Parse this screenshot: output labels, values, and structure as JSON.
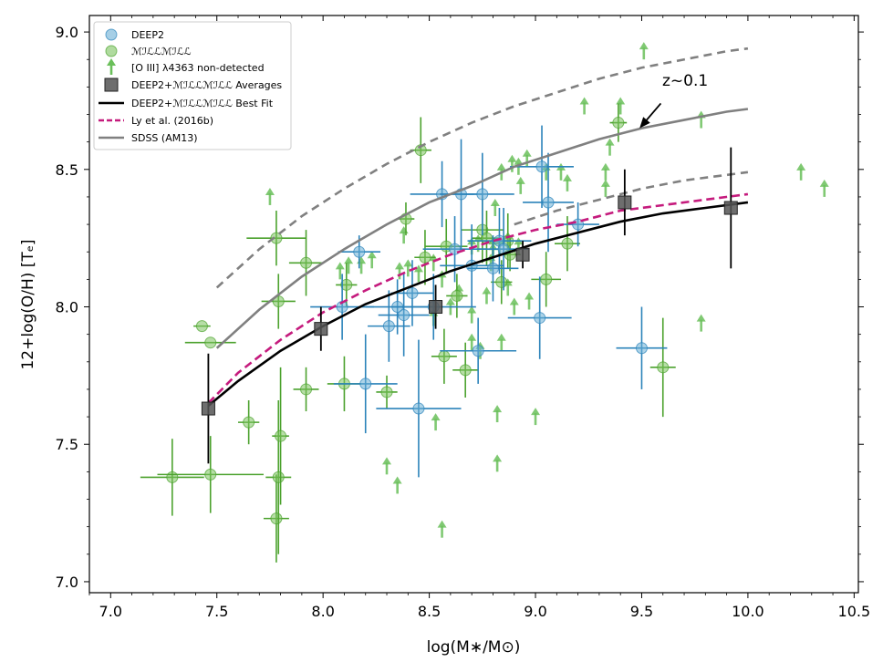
{
  "chart_data": {
    "type": "scatter",
    "title": "",
    "xlabel": "log(M∗/M⊙)",
    "ylabel": "12+log(O/H) [Tₑ]",
    "xlim": [
      6.9,
      10.52
    ],
    "ylim": [
      6.96,
      9.06
    ],
    "xticks": [
      7.0,
      7.5,
      8.0,
      8.5,
      9.0,
      9.5,
      10.0,
      10.5
    ],
    "xtick_labels": [
      "7.0",
      "7.5",
      "8.0",
      "8.5",
      "9.0",
      "9.5",
      "10.0",
      "10.5"
    ],
    "yticks": [
      7.0,
      7.5,
      8.0,
      8.5,
      9.0
    ],
    "ytick_labels": [
      "7.0",
      "7.5",
      "8.0",
      "8.5",
      "9.0"
    ],
    "grid": false,
    "legend_position": "top-left",
    "colors": {
      "deep2": "#2b83ba",
      "mact": "#4ca22e",
      "nondetect": "#6abf5a",
      "averages": "#555555",
      "bestfit": "#000000",
      "ly2016": "#c51b7d",
      "sdss": "#808080"
    },
    "legend": [
      "DEEP2",
      "ℳℐℒℒℳℐℒℒ",
      "[O III] λ4363 non-detected",
      "DEEP2+ℳℐℒℒℳℐℒℒ Averages",
      "DEEP2+ℳℐℒℒℳℐℒℒ Best Fit",
      "Ly et al. (2016b)",
      "SDSS (AM13)"
    ],
    "annotation": "z~0.1",
    "deep2": [
      [
        8.17,
        8.2,
        0.1,
        0.06
      ],
      [
        8.09,
        8.0,
        0.15,
        0.12
      ],
      [
        8.2,
        7.72,
        0.15,
        0.18
      ],
      [
        8.31,
        7.93,
        0.1,
        0.13
      ],
      [
        8.35,
        8.0,
        0.15,
        0.1
      ],
      [
        8.38,
        7.97,
        0.12,
        0.15
      ],
      [
        8.42,
        8.05,
        0.1,
        0.12
      ],
      [
        8.45,
        7.63,
        0.2,
        0.25
      ],
      [
        8.52,
        8.0,
        0.2,
        0.12
      ],
      [
        8.56,
        8.41,
        0.15,
        0.12
      ],
      [
        8.62,
        8.21,
        0.15,
        0.12
      ],
      [
        8.65,
        8.41,
        0.1,
        0.2
      ],
      [
        8.7,
        8.15,
        0.15,
        0.15
      ],
      [
        8.73,
        7.84,
        0.18,
        0.12
      ],
      [
        8.75,
        8.41,
        0.15,
        0.15
      ],
      [
        8.8,
        8.14,
        0.12,
        0.12
      ],
      [
        8.83,
        8.24,
        0.15,
        0.12
      ],
      [
        8.85,
        8.21,
        0.12,
        0.15
      ],
      [
        9.03,
        8.51,
        0.15,
        0.15
      ],
      [
        9.02,
        7.96,
        0.15,
        0.15
      ],
      [
        9.06,
        8.38,
        0.12,
        0.18
      ],
      [
        9.2,
        8.3,
        0.1,
        0.08
      ],
      [
        9.5,
        7.85,
        0.12,
        0.15
      ]
    ],
    "mact": [
      [
        7.43,
        7.93,
        0.04,
        0.0
      ],
      [
        7.47,
        7.87,
        0.12,
        0.0
      ],
      [
        7.29,
        7.38,
        0.15,
        0.14
      ],
      [
        7.47,
        7.39,
        0.25,
        0.14
      ],
      [
        7.65,
        7.58,
        0.05,
        0.08
      ],
      [
        7.78,
        8.25,
        0.14,
        0.1
      ],
      [
        7.79,
        8.02,
        0.08,
        0.1
      ],
      [
        7.78,
        7.23,
        0.06,
        0.16
      ],
      [
        7.79,
        7.38,
        0.06,
        0.28
      ],
      [
        7.8,
        7.53,
        0.04,
        0.25
      ],
      [
        7.92,
        8.16,
        0.08,
        0.12
      ],
      [
        7.92,
        7.7,
        0.06,
        0.08
      ],
      [
        8.1,
        7.72,
        0.08,
        0.1
      ],
      [
        8.11,
        8.08,
        0.05,
        0.08
      ],
      [
        8.3,
        7.69,
        0.05,
        0.06
      ],
      [
        8.39,
        8.32,
        0.04,
        0.06
      ],
      [
        8.46,
        8.57,
        0.05,
        0.12
      ],
      [
        8.48,
        8.18,
        0.05,
        0.1
      ],
      [
        8.57,
        7.82,
        0.06,
        0.1
      ],
      [
        8.58,
        8.22,
        0.1,
        0.1
      ],
      [
        8.63,
        8.04,
        0.05,
        0.08
      ],
      [
        8.67,
        7.77,
        0.06,
        0.1
      ],
      [
        8.75,
        8.28,
        0.1,
        0.12
      ],
      [
        8.77,
        8.25,
        0.07,
        0.1
      ],
      [
        8.84,
        8.09,
        0.05,
        0.08
      ],
      [
        8.87,
        8.24,
        0.06,
        0.1
      ],
      [
        8.88,
        8.19,
        0.05,
        0.06
      ],
      [
        9.05,
        8.1,
        0.07,
        0.1
      ],
      [
        9.15,
        8.23,
        0.06,
        0.1
      ],
      [
        9.39,
        8.67,
        0.04,
        0.07
      ],
      [
        9.6,
        7.78,
        0.06,
        0.18
      ]
    ],
    "nondetected": [
      [
        7.75,
        8.4
      ],
      [
        8.12,
        8.15
      ],
      [
        8.18,
        8.15
      ],
      [
        8.23,
        8.17
      ],
      [
        8.08,
        8.13
      ],
      [
        8.38,
        8.26
      ],
      [
        8.36,
        8.13
      ],
      [
        8.4,
        8.14
      ],
      [
        8.45,
        8.12
      ],
      [
        8.52,
        8.16
      ],
      [
        8.56,
        8.1
      ],
      [
        8.6,
        8.0
      ],
      [
        8.64,
        8.05
      ],
      [
        8.52,
        7.96
      ],
      [
        8.7,
        7.97
      ],
      [
        8.7,
        7.87
      ],
      [
        8.74,
        7.84
      ],
      [
        8.84,
        7.87
      ],
      [
        8.77,
        8.04
      ],
      [
        8.7,
        8.22
      ],
      [
        8.73,
        8.23
      ],
      [
        8.79,
        8.16
      ],
      [
        8.8,
        8.2
      ],
      [
        8.83,
        8.22
      ],
      [
        8.87,
        8.24
      ],
      [
        8.92,
        8.22
      ],
      [
        8.87,
        8.07
      ],
      [
        8.9,
        8.0
      ],
      [
        8.97,
        8.02
      ],
      [
        8.81,
        8.36
      ],
      [
        8.84,
        8.49
      ],
      [
        8.93,
        8.44
      ],
      [
        8.89,
        8.52
      ],
      [
        8.92,
        8.51
      ],
      [
        8.96,
        8.54
      ],
      [
        9.05,
        8.49
      ],
      [
        9.12,
        8.49
      ],
      [
        9.15,
        8.45
      ],
      [
        9.23,
        8.73
      ],
      [
        9.33,
        8.49
      ],
      [
        9.4,
        8.73
      ],
      [
        9.33,
        8.43
      ],
      [
        9.35,
        8.58
      ],
      [
        9.51,
        8.93
      ],
      [
        9.78,
        8.68
      ],
      [
        9.78,
        7.94
      ],
      [
        10.25,
        8.49
      ],
      [
        10.36,
        8.43
      ],
      [
        8.82,
        7.61
      ],
      [
        9.0,
        7.6
      ],
      [
        8.82,
        7.43
      ],
      [
        8.53,
        7.58
      ],
      [
        8.3,
        7.42
      ],
      [
        8.35,
        7.35
      ],
      [
        8.56,
        7.19
      ],
      [
        8.8,
        8.22
      ]
    ],
    "averages": [
      [
        7.46,
        7.63,
        0.0,
        0.2
      ],
      [
        7.99,
        7.92,
        0.0,
        0.08
      ],
      [
        8.53,
        8.0,
        0.0,
        0.08
      ],
      [
        8.94,
        8.19,
        0.0,
        0.05
      ],
      [
        9.42,
        8.38,
        0.0,
        0.12
      ],
      [
        9.92,
        8.36,
        0.0,
        0.22
      ]
    ],
    "best_fit": {
      "x": [
        7.46,
        7.6,
        7.8,
        8.0,
        8.2,
        8.4,
        8.6,
        8.8,
        9.0,
        9.2,
        9.4,
        9.6,
        9.8,
        10.0
      ],
      "y": [
        7.64,
        7.73,
        7.84,
        7.93,
        8.01,
        8.07,
        8.13,
        8.18,
        8.23,
        8.27,
        8.31,
        8.34,
        8.36,
        8.38
      ]
    },
    "ly2016": {
      "x": [
        7.46,
        7.6,
        7.8,
        8.0,
        8.2,
        8.4,
        8.6,
        8.8,
        9.0,
        9.2,
        9.4,
        9.6,
        9.8,
        10.0
      ],
      "y": [
        7.65,
        7.76,
        7.88,
        7.98,
        8.06,
        8.13,
        8.19,
        8.24,
        8.28,
        8.31,
        8.35,
        8.37,
        8.39,
        8.41
      ]
    },
    "sdss": {
      "x": [
        7.5,
        7.7,
        7.9,
        8.1,
        8.3,
        8.5,
        8.7,
        8.9,
        9.1,
        9.3,
        9.5,
        9.7,
        9.9,
        10.0
      ],
      "y": [
        7.85,
        7.99,
        8.11,
        8.21,
        8.3,
        8.38,
        8.44,
        8.51,
        8.56,
        8.61,
        8.65,
        8.68,
        8.71,
        8.72
      ]
    },
    "sdss_upper": {
      "x": [
        7.5,
        7.7,
        7.9,
        8.1,
        8.3,
        8.5,
        8.7,
        8.9,
        9.1,
        9.3,
        9.5,
        9.7,
        9.9,
        10.0
      ],
      "y": [
        8.07,
        8.21,
        8.33,
        8.43,
        8.52,
        8.6,
        8.67,
        8.73,
        8.78,
        8.83,
        8.87,
        8.9,
        8.93,
        8.94
      ]
    },
    "sdss_lower": {
      "x": [
        8.9,
        9.1,
        9.3,
        9.5,
        9.7,
        9.9,
        10.0
      ],
      "y": [
        8.3,
        8.35,
        8.39,
        8.43,
        8.46,
        8.48,
        8.49
      ]
    },
    "annotation_arrow": {
      "from": [
        9.59,
        8.74
      ],
      "to": [
        9.49,
        8.65
      ]
    }
  }
}
